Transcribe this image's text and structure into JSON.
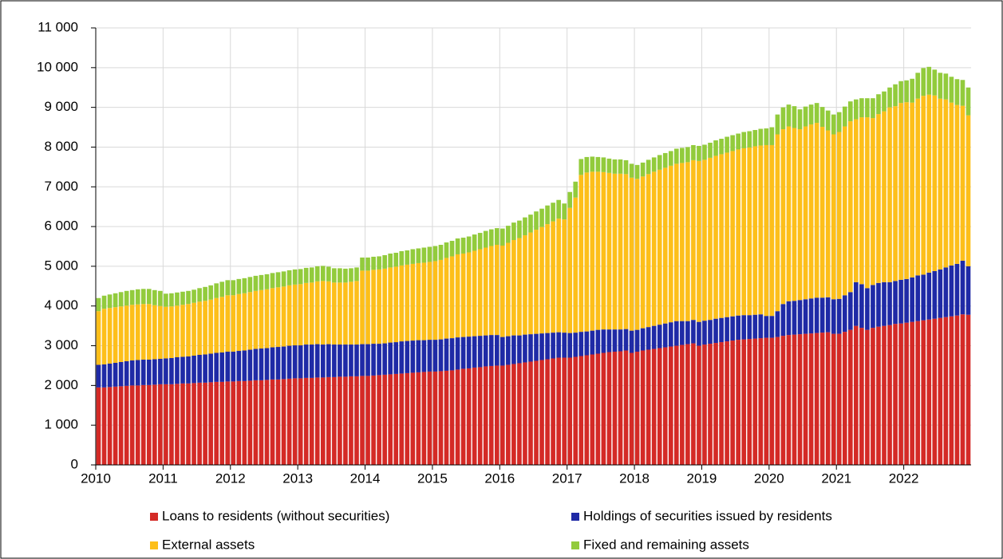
{
  "chart_data": {
    "type": "stacked_bar",
    "categories": [
      "2010",
      null,
      null,
      null,
      null,
      null,
      null,
      null,
      null,
      null,
      null,
      null,
      "2011",
      null,
      null,
      null,
      null,
      null,
      null,
      null,
      null,
      null,
      null,
      null,
      "2012",
      null,
      null,
      null,
      null,
      null,
      null,
      null,
      null,
      null,
      null,
      null,
      "2013",
      null,
      null,
      null,
      null,
      null,
      null,
      null,
      null,
      null,
      null,
      null,
      "2014",
      null,
      null,
      null,
      null,
      null,
      null,
      null,
      null,
      null,
      null,
      null,
      "2015",
      null,
      null,
      null,
      null,
      null,
      null,
      null,
      null,
      null,
      null,
      null,
      "2016",
      null,
      null,
      null,
      null,
      null,
      null,
      null,
      null,
      null,
      null,
      null,
      "2017",
      null,
      null,
      null,
      null,
      null,
      null,
      null,
      null,
      null,
      null,
      null,
      "2018",
      null,
      null,
      null,
      null,
      null,
      null,
      null,
      null,
      null,
      null,
      null,
      "2019",
      null,
      null,
      null,
      null,
      null,
      null,
      null,
      null,
      null,
      null,
      null,
      "2020",
      null,
      null,
      null,
      null,
      null,
      null,
      null,
      null,
      null,
      null,
      null,
      "2021",
      null,
      null,
      null,
      null,
      null,
      null,
      null,
      null,
      null,
      null,
      null,
      "2022",
      null,
      null,
      null,
      null,
      null,
      null,
      null,
      null,
      null,
      null,
      null
    ],
    "series": [
      {
        "name": "Loans to residents (without securities)",
        "color": "#d42a26",
        "values": [
          1950,
          1950,
          1960,
          1970,
          1980,
          1990,
          2000,
          2000,
          2010,
          2010,
          2020,
          2030,
          2030,
          2030,
          2040,
          2050,
          2050,
          2060,
          2070,
          2070,
          2080,
          2090,
          2090,
          2100,
          2100,
          2110,
          2110,
          2120,
          2130,
          2130,
          2140,
          2150,
          2150,
          2160,
          2170,
          2180,
          2180,
          2190,
          2190,
          2200,
          2200,
          2210,
          2210,
          2220,
          2220,
          2230,
          2230,
          2240,
          2240,
          2250,
          2260,
          2270,
          2280,
          2290,
          2300,
          2310,
          2320,
          2330,
          2340,
          2350,
          2350,
          2360,
          2370,
          2380,
          2400,
          2420,
          2430,
          2450,
          2460,
          2480,
          2490,
          2500,
          2500,
          2520,
          2540,
          2560,
          2580,
          2600,
          2620,
          2640,
          2660,
          2680,
          2700,
          2700,
          2700,
          2720,
          2740,
          2760,
          2780,
          2800,
          2820,
          2840,
          2850,
          2860,
          2880,
          2820,
          2850,
          2880,
          2900,
          2920,
          2940,
          2960,
          2980,
          3000,
          3020,
          3040,
          3060,
          3000,
          3030,
          3050,
          3070,
          3090,
          3110,
          3130,
          3150,
          3160,
          3170,
          3180,
          3190,
          3200,
          3200,
          3220,
          3250,
          3270,
          3280,
          3290,
          3300,
          3310,
          3320,
          3330,
          3340,
          3300,
          3300,
          3350,
          3400,
          3500,
          3450,
          3400,
          3450,
          3480,
          3500,
          3520,
          3550,
          3560,
          3580,
          3600,
          3620,
          3640,
          3660,
          3680,
          3700,
          3720,
          3740,
          3760,
          3790,
          3780
        ]
      },
      {
        "name": "Holdings of securities issued by residents",
        "color": "#1f2aa6",
        "values": [
          570,
          580,
          590,
          600,
          610,
          620,
          630,
          640,
          640,
          640,
          640,
          640,
          650,
          660,
          670,
          670,
          680,
          690,
          700,
          710,
          720,
          730,
          740,
          750,
          750,
          760,
          770,
          780,
          790,
          800,
          800,
          810,
          820,
          820,
          830,
          830,
          830,
          840,
          840,
          840,
          830,
          830,
          820,
          810,
          810,
          800,
          800,
          800,
          800,
          800,
          790,
          790,
          800,
          800,
          810,
          810,
          810,
          810,
          800,
          800,
          800,
          800,
          810,
          810,
          810,
          800,
          800,
          790,
          790,
          780,
          780,
          770,
          720,
          720,
          720,
          700,
          700,
          690,
          680,
          670,
          660,
          650,
          640,
          630,
          620,
          610,
          610,
          600,
          600,
          600,
          590,
          570,
          560,
          550,
          540,
          560,
          550,
          560,
          570,
          580,
          590,
          600,
          610,
          620,
          600,
          580,
          590,
          600,
          600,
          600,
          610,
          610,
          610,
          610,
          610,
          610,
          600,
          600,
          600,
          550,
          550,
          650,
          800,
          850,
          850,
          860,
          870,
          880,
          890,
          880,
          880,
          870,
          880,
          920,
          950,
          1100,
          1100,
          1050,
          1080,
          1100,
          1100,
          1080,
          1080,
          1100,
          1100,
          1120,
          1150,
          1150,
          1180,
          1200,
          1220,
          1250,
          1280,
          1300,
          1350,
          1220
        ]
      },
      {
        "name": "External assets",
        "color": "#fdbf1a",
        "values": [
          1350,
          1400,
          1400,
          1400,
          1400,
          1400,
          1400,
          1400,
          1400,
          1400,
          1360,
          1330,
          1300,
          1300,
          1300,
          1310,
          1320,
          1330,
          1340,
          1350,
          1360,
          1380,
          1400,
          1420,
          1420,
          1430,
          1440,
          1450,
          1460,
          1470,
          1480,
          1490,
          1500,
          1510,
          1520,
          1530,
          1540,
          1550,
          1560,
          1580,
          1600,
          1580,
          1560,
          1560,
          1560,
          1580,
          1600,
          1850,
          1850,
          1860,
          1870,
          1880,
          1890,
          1900,
          1910,
          1920,
          1930,
          1940,
          1950,
          1960,
          1980,
          2000,
          2030,
          2060,
          2090,
          2100,
          2120,
          2150,
          2180,
          2210,
          2240,
          2270,
          2300,
          2350,
          2400,
          2450,
          2500,
          2560,
          2620,
          2680,
          2740,
          2800,
          2860,
          2850,
          3150,
          3400,
          3950,
          4000,
          4000,
          3980,
          3960,
          3940,
          3920,
          3920,
          3900,
          3850,
          3800,
          3820,
          3850,
          3880,
          3900,
          3920,
          3940,
          3960,
          3980,
          4000,
          4020,
          4050,
          4050,
          4080,
          4100,
          4120,
          4140,
          4160,
          4180,
          4200,
          4220,
          4240,
          4250,
          4300,
          4300,
          4450,
          4400,
          4400,
          4350,
          4300,
          4350,
          4380,
          4400,
          4300,
          4200,
          4150,
          4200,
          4250,
          4300,
          4100,
          4200,
          4300,
          4200,
          4250,
          4300,
          4400,
          4400,
          4450,
          4450,
          4400,
          4450,
          4500,
          4480,
          4420,
          4300,
          4230,
          4100,
          4000,
          3900,
          3800
        ]
      },
      {
        "name": "Fixed and remaining assets",
        "color": "#92cb3c",
        "values": [
          330,
          330,
          340,
          350,
          360,
          370,
          370,
          380,
          380,
          380,
          380,
          380,
          330,
          330,
          330,
          330,
          330,
          330,
          340,
          350,
          360,
          370,
          380,
          380,
          380,
          380,
          380,
          380,
          380,
          380,
          380,
          380,
          380,
          380,
          380,
          380,
          380,
          380,
          380,
          380,
          380,
          370,
          360,
          360,
          350,
          340,
          340,
          330,
          330,
          330,
          330,
          340,
          350,
          350,
          360,
          360,
          370,
          370,
          380,
          380,
          380,
          380,
          390,
          390,
          400,
          400,
          400,
          410,
          410,
          420,
          420,
          420,
          430,
          430,
          440,
          440,
          450,
          450,
          460,
          460,
          470,
          470,
          470,
          400,
          400,
          400,
          400,
          390,
          380,
          370,
          370,
          360,
          360,
          360,
          350,
          350,
          350,
          350,
          360,
          360,
          370,
          370,
          370,
          380,
          380,
          380,
          380,
          380,
          380,
          380,
          390,
          390,
          400,
          400,
          400,
          410,
          410,
          410,
          420,
          420,
          450,
          500,
          550,
          550,
          550,
          500,
          500,
          500,
          500,
          500,
          500,
          500,
          500,
          500,
          500,
          500,
          480,
          480,
          500,
          500,
          500,
          500,
          550,
          550,
          550,
          600,
          650,
          700,
          700,
          650,
          650,
          650,
          650,
          650,
          650,
          700
        ]
      }
    ],
    "ylim": [
      0,
      11000
    ],
    "yticks": [
      0,
      {
        "value": 1000,
        "label": "1 000"
      },
      {
        "value": 2000,
        "label": "2 000"
      },
      {
        "value": 3000,
        "label": "3 000"
      },
      {
        "value": 4000,
        "label": "4 000"
      },
      {
        "value": 5000,
        "label": "5 000"
      },
      {
        "value": 6000,
        "label": "6 000"
      },
      {
        "value": 7000,
        "label": "7 000"
      },
      {
        "value": 8000,
        "label": "8 000"
      },
      {
        "value": 9000,
        "label": "9 000"
      },
      {
        "value": 10000,
        "label": "10 000"
      },
      {
        "value": 11000,
        "label": "11 000"
      }
    ],
    "grid": true
  }
}
